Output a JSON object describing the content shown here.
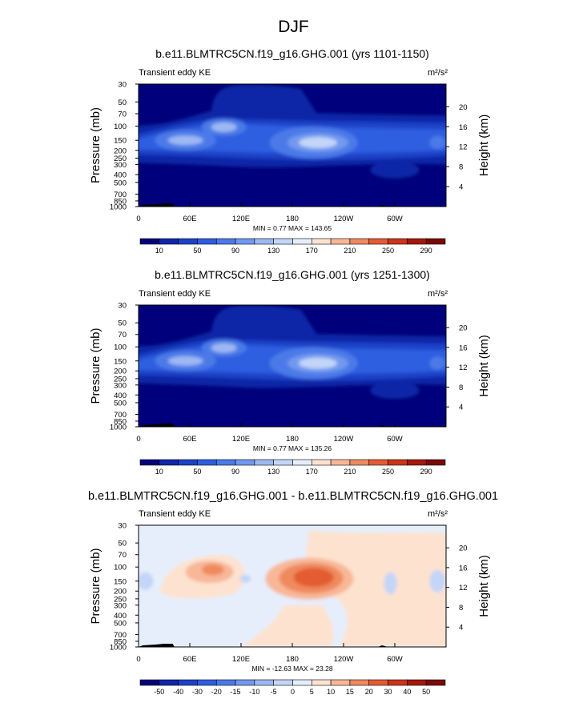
{
  "figure": {
    "title": "DJF"
  },
  "chart_data": [
    {
      "type": "heatmap",
      "title": "b.e11.BLMTRC5CN.f19_g16.GHG.001 (yrs 1101-1150)",
      "left_label": "Transient eddy KE",
      "units": "m²/s²",
      "ylabel": "Pressure (mb)",
      "y2label": "Height (km)",
      "xticks": [
        "0",
        "60E",
        "120E",
        "180",
        "120W",
        "60W"
      ],
      "xtick_values": [
        0,
        60,
        120,
        180,
        240,
        300
      ],
      "xlim": [
        0,
        360
      ],
      "yticks": [
        "30",
        "50",
        "70",
        "100",
        "150",
        "200",
        "250",
        "300",
        "400",
        "500",
        "700",
        "850",
        "1000"
      ],
      "ytick_values": [
        30,
        50,
        70,
        100,
        150,
        200,
        250,
        300,
        400,
        500,
        700,
        850,
        1000
      ],
      "ylim": [
        1000,
        30
      ],
      "y_scale": "log",
      "y2ticks": [
        "4",
        "8",
        "12",
        "16",
        "20"
      ],
      "stats": "MIN =   0.77  MAX = 143.65",
      "colorbar": {
        "labels": [
          "10",
          "50",
          "90",
          "130",
          "170",
          "210",
          "250",
          "290"
        ],
        "colors": [
          "#03047b",
          "#0f27a8",
          "#1b43c8",
          "#2d5ee0",
          "#4c7ae8",
          "#7299ef",
          "#9db8f3",
          "#c3d5f8",
          "#e6eefc",
          "#fde2d0",
          "#f8b797",
          "#ef8a5f",
          "#e45c33",
          "#cc3517",
          "#a5180b",
          "#7a0907"
        ]
      },
      "max_value": 143.65,
      "min_value": 0.77,
      "mode": "positive"
    },
    {
      "type": "heatmap",
      "title": "b.e11.BLMTRC5CN.f19_g16.GHG.001 (yrs 1251-1300)",
      "left_label": "Transient eddy KE",
      "units": "m²/s²",
      "ylabel": "Pressure (mb)",
      "y2label": "Height (km)",
      "xticks": [
        "0",
        "60E",
        "120E",
        "180",
        "120W",
        "60W"
      ],
      "xtick_values": [
        0,
        60,
        120,
        180,
        240,
        300
      ],
      "xlim": [
        0,
        360
      ],
      "yticks": [
        "30",
        "50",
        "70",
        "100",
        "150",
        "200",
        "250",
        "300",
        "400",
        "500",
        "700",
        "850",
        "1000"
      ],
      "ytick_values": [
        30,
        50,
        70,
        100,
        150,
        200,
        250,
        300,
        400,
        500,
        700,
        850,
        1000
      ],
      "ylim": [
        1000,
        30
      ],
      "y_scale": "log",
      "y2ticks": [
        "4",
        "8",
        "12",
        "16",
        "20"
      ],
      "stats": "MIN =   0.77  MAX = 135.26",
      "colorbar": {
        "labels": [
          "10",
          "50",
          "90",
          "130",
          "170",
          "210",
          "250",
          "290"
        ],
        "colors": [
          "#03047b",
          "#0f27a8",
          "#1b43c8",
          "#2d5ee0",
          "#4c7ae8",
          "#7299ef",
          "#9db8f3",
          "#c3d5f8",
          "#e6eefc",
          "#fde2d0",
          "#f8b797",
          "#ef8a5f",
          "#e45c33",
          "#cc3517",
          "#a5180b",
          "#7a0907"
        ]
      },
      "max_value": 135.26,
      "min_value": 0.77,
      "mode": "positive"
    },
    {
      "type": "heatmap",
      "title": "b.e11.BLMTRC5CN.f19_g16.GHG.001 - b.e11.BLMTRC5CN.f19_g16.GHG.001",
      "left_label": "Transient eddy KE",
      "units": "m²/s²",
      "ylabel": "Pressure (mb)",
      "y2label": "Height (km)",
      "xticks": [
        "0",
        "60E",
        "120E",
        "180",
        "120W",
        "60W"
      ],
      "xtick_values": [
        0,
        60,
        120,
        180,
        240,
        300
      ],
      "xlim": [
        0,
        360
      ],
      "yticks": [
        "30",
        "50",
        "70",
        "100",
        "150",
        "200",
        "250",
        "300",
        "400",
        "500",
        "700",
        "850",
        "1000"
      ],
      "ytick_values": [
        30,
        50,
        70,
        100,
        150,
        200,
        250,
        300,
        400,
        500,
        700,
        850,
        1000
      ],
      "ylim": [
        1000,
        30
      ],
      "y_scale": "log",
      "y2ticks": [
        "4",
        "8",
        "12",
        "16",
        "20"
      ],
      "stats": "MIN = -12.63  MAX =  23.28",
      "colorbar": {
        "labels": [
          "-50",
          "-40",
          "-30",
          "-20",
          "-15",
          "-10",
          "-5",
          "0",
          "5",
          "10",
          "15",
          "20",
          "30",
          "40",
          "50"
        ],
        "colors": [
          "#03047b",
          "#0f27a8",
          "#1b43c8",
          "#2d5ee0",
          "#4c7ae8",
          "#7299ef",
          "#9db8f3",
          "#c3d5f8",
          "#e6eefc",
          "#fde2d0",
          "#f8b797",
          "#ef8a5f",
          "#e45c33",
          "#cc3517",
          "#a5180b",
          "#7a0907"
        ]
      },
      "max_value": 23.28,
      "min_value": -12.63,
      "mode": "diff"
    }
  ]
}
